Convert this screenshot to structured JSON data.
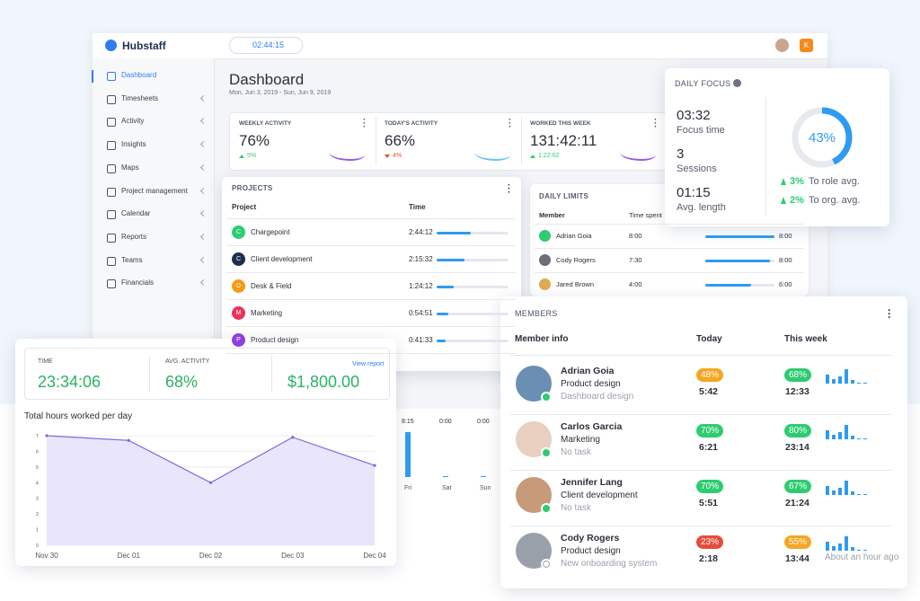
{
  "app": {
    "brand": "Hubstaff",
    "timer": "02:44:15",
    "avatar": "K"
  },
  "nav": [
    "Dashboard",
    "Timesheets",
    "Activity",
    "Insights",
    "Maps",
    "Project management",
    "Calendar",
    "Reports",
    "Teams",
    "Financials"
  ],
  "dashboard": {
    "title": "Dashboard",
    "dates": "Mon, Jun 3, 2019 - Sun, Jun 9, 2019"
  },
  "stats": [
    {
      "label": "WEEKLY ACTIVITY",
      "value": "76%",
      "change": "5%",
      "up": true
    },
    {
      "label": "TODAY'S ACTIVITY",
      "value": "66%",
      "change": "4%",
      "up": false
    },
    {
      "label": "WORKED THIS WEEK",
      "value": "131:42:11",
      "change": "1:22:02",
      "up": true
    }
  ],
  "projects": {
    "title": "PROJECTS",
    "headers": [
      "Project",
      "Time"
    ],
    "rows": [
      {
        "initial": "C",
        "name": "Chargepoint",
        "time": "2:44:12",
        "color": "#2ecc71"
      },
      {
        "initial": "C",
        "name": "Client development",
        "time": "2:15:32",
        "color": "#1f2d4d"
      },
      {
        "initial": "D",
        "name": "Desk & Field",
        "time": "1:24:12",
        "color": "#f39c12"
      },
      {
        "initial": "M",
        "name": "Marketing",
        "time": "0:54:51",
        "color": "#e8335a"
      },
      {
        "initial": "P",
        "name": "Product design",
        "time": "0:41:33",
        "color": "#8e3fe0"
      }
    ],
    "link": "View report"
  },
  "daily_limits": {
    "title": "DAILY LIMITS",
    "headers": [
      "Member",
      "Time spent"
    ],
    "rows": [
      {
        "name": "Adrian Goia",
        "spent": "8:00",
        "limit": "8:00"
      },
      {
        "name": "Cody Rogers",
        "spent": "7:30",
        "limit": "8:00"
      },
      {
        "name": "Jared Brown",
        "spent": "4:00",
        "limit": "6:00"
      }
    ]
  },
  "daily_focus": {
    "title": "DAILY FOCUS",
    "items": [
      {
        "value": "03:32",
        "label": "Focus time"
      },
      {
        "value": "3",
        "label": "Sessions"
      },
      {
        "value": "01:15",
        "label": "Avg. length"
      }
    ],
    "percent": "43%",
    "comparisons": [
      {
        "value": "3%",
        "label": "To role avg."
      },
      {
        "value": "2%",
        "label": "To org. avg."
      }
    ]
  },
  "members": {
    "title": "MEMBERS",
    "headers": [
      "Member info",
      "Today",
      "This week"
    ],
    "rows": [
      {
        "name": "Adrian Goia",
        "project": "Product design",
        "task": "Dashboard design",
        "today_pct": "48%",
        "today_color": "#f5a623",
        "today_time": "5:42",
        "week_pct": "68%",
        "week_color": "#2ecc71",
        "week_time": "12:33",
        "online": true
      },
      {
        "name": "Carlos Garcia",
        "project": "Marketing",
        "task": "No task",
        "today_pct": "70%",
        "today_color": "#2ecc71",
        "today_time": "6:21",
        "week_pct": "80%",
        "week_color": "#2ecc71",
        "week_time": "23:14",
        "online": true
      },
      {
        "name": "Jennifer Lang",
        "project": "Client development",
        "task": "No task",
        "today_pct": "70%",
        "today_color": "#2ecc71",
        "today_time": "5:51",
        "week_pct": "67%",
        "week_color": "#2ecc71",
        "week_time": "21:24",
        "online": true
      },
      {
        "name": "Cody Rogers",
        "project": "Product design",
        "task": "New onboarding system",
        "today_pct": "23%",
        "today_color": "#e74c3c",
        "today_time": "2:18",
        "week_pct": "55%",
        "week_color": "#f5a623",
        "week_time": "13:44",
        "online": false,
        "last_seen": "About an hour ago"
      }
    ]
  },
  "summary": [
    {
      "label": "TIME",
      "value": "23:34:06"
    },
    {
      "label": "AVG. ACTIVITY",
      "value": "68%"
    },
    {
      "value": "$1,800.00"
    }
  ],
  "hours_chart": {
    "type": "line",
    "title": "Total hours worked per day",
    "categories": [
      "Nov 30",
      "Dec 01",
      "Dec 02",
      "Dec 03",
      "Dec 04"
    ],
    "values": [
      7,
      6.7,
      4,
      6.9,
      5.1
    ],
    "ylim": [
      0,
      7
    ],
    "yticks": [
      0,
      1,
      2,
      3,
      4,
      5,
      6,
      7
    ],
    "color": "#7b6be0",
    "grid": true
  },
  "bar_fragment": {
    "times": [
      "8:15",
      "0:00",
      "0:00"
    ],
    "days": [
      "Fri",
      "Sat",
      "Sun"
    ]
  }
}
